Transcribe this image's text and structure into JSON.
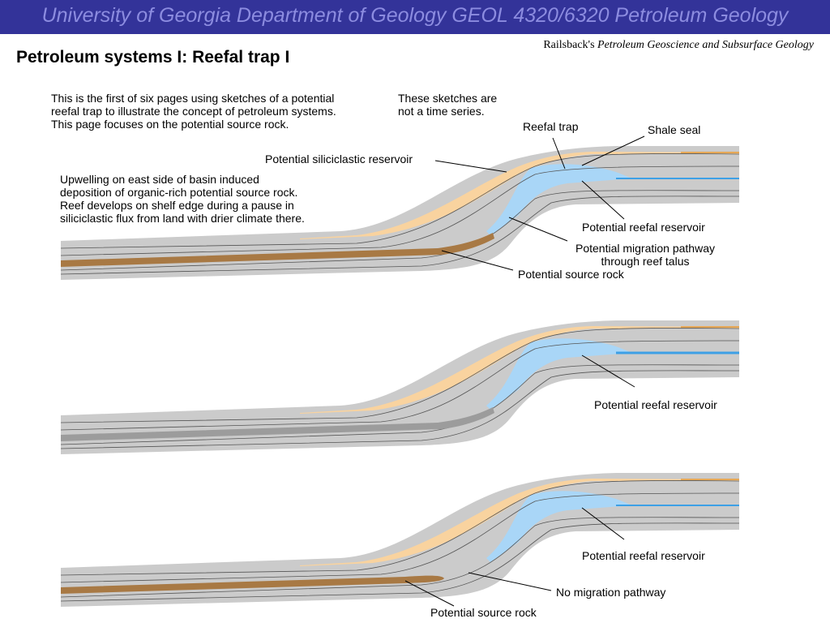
{
  "header": {
    "banner": "University of Georgia Department of Geology GEOL 4320/6320 Petroleum Geology",
    "credit_author": "Railsback's ",
    "credit_book": "Petroleum Geoscience and Subsurface Geology",
    "title": "Petroleum systems I: Reefal trap I"
  },
  "intro": {
    "line1": "This is the first of six pages using sketches of a potential",
    "line2": "reefal trap to illustrate the concept of petroleum systems.",
    "line3": "This page focuses on the potential source rock.",
    "note1": "These sketches are",
    "note2": "not a time series."
  },
  "upwelling": {
    "line1": "Upwelling on east side of basin induced",
    "line2": "deposition of organic-rich potential source rock.",
    "line3": "Reef develops on shelf edge during a pause in",
    "line4": "siliciclastic flux from land with drier climate there."
  },
  "panel1": {
    "reefal_trap": "Reefal trap",
    "shale_seal": "Shale seal",
    "siliciclastic": "Potential siliciclastic reservoir",
    "reefal_reservoir": "Potential reefal reservoir",
    "migration1": "Potential migration pathway",
    "migration2": "through reef talus",
    "source": "Potential source rock"
  },
  "panel2": {
    "reefal_reservoir": "Potential reefal reservoir"
  },
  "panel3": {
    "reefal_reservoir": "Potential reefal reservoir",
    "no_migration": "No migration pathway",
    "source": "Potential source rock"
  },
  "colors": {
    "banner": "#333399",
    "rock": "#cbcbcb",
    "siliciclastic": "#f9d39f",
    "source_rock": "#a87944",
    "reef": "#a9d6f7",
    "water_line": "#3da0e6",
    "inert_source": "#9c9c9c"
  }
}
